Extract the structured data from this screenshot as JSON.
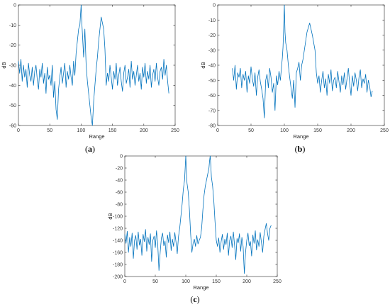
{
  "chart_data": [
    {
      "type": "line",
      "panel_label": "(a)",
      "xlabel": "Range",
      "ylabel": "dB",
      "xlim": [
        0,
        250
      ],
      "ylim": [
        -60,
        0
      ],
      "xticks": [
        0,
        50,
        100,
        150,
        200,
        250
      ],
      "yticks": [
        -60,
        -50,
        -40,
        -30,
        -20,
        -10,
        0
      ],
      "grid": false,
      "color": "#0072BD",
      "series": [
        {
          "name": "",
          "x": [
            0,
            2,
            4,
            6,
            8,
            10,
            12,
            14,
            16,
            18,
            20,
            22,
            24,
            26,
            28,
            30,
            32,
            34,
            36,
            38,
            40,
            42,
            44,
            46,
            48,
            50,
            52,
            54,
            56,
            58,
            60,
            62,
            64,
            66,
            68,
            70,
            72,
            74,
            76,
            78,
            80,
            82,
            84,
            86,
            88,
            90,
            92,
            94,
            96,
            98,
            99,
            100,
            101,
            102,
            104,
            106,
            108,
            110,
            112,
            114,
            116,
            118,
            120,
            122,
            124,
            126,
            128,
            130,
            132,
            134,
            136,
            138,
            140,
            142,
            144,
            146,
            148,
            150,
            152,
            154,
            156,
            158,
            160,
            162,
            164,
            166,
            168,
            170,
            172,
            174,
            176,
            178,
            180,
            182,
            184,
            186,
            188,
            190,
            192,
            194,
            196,
            198,
            200,
            202,
            204,
            206,
            208,
            210,
            212,
            214,
            216,
            218,
            220,
            222,
            224,
            226,
            228,
            230,
            232,
            234,
            236,
            238,
            240
          ],
          "y": [
            -28,
            -34,
            -27,
            -38,
            -30,
            -36,
            -32,
            -41,
            -29,
            -35,
            -38,
            -31,
            -40,
            -33,
            -30,
            -37,
            -42,
            -32,
            -36,
            -29,
            -39,
            -34,
            -44,
            -31,
            -37,
            -35,
            -40,
            -30,
            -46,
            -38,
            -52,
            -57,
            -42,
            -36,
            -31,
            -39,
            -34,
            -29,
            -41,
            -33,
            -37,
            -30,
            -36,
            -40,
            -28,
            -35,
            -24,
            -18,
            -12,
            -10,
            -5,
            0,
            -8,
            -14,
            -26,
            -12,
            -30,
            -38,
            -44,
            -50,
            -56,
            -60,
            -48,
            -40,
            -32,
            -26,
            -18,
            -12,
            -6,
            -9,
            -12,
            -22,
            -40,
            -34,
            -38,
            -30,
            -36,
            -42,
            -33,
            -37,
            -29,
            -40,
            -35,
            -31,
            -38,
            -43,
            -34,
            -30,
            -39,
            -36,
            -32,
            -41,
            -28,
            -37,
            -33,
            -40,
            -35,
            -30,
            -38,
            -34,
            -42,
            -31,
            -36,
            -29,
            -39,
            -33,
            -37,
            -30,
            -41,
            -35,
            -32,
            -38,
            -29,
            -36,
            -40,
            -33,
            -31,
            -37,
            -27,
            -35,
            -30,
            -38,
            -44
          ]
        }
      ]
    },
    {
      "type": "line",
      "panel_label": "(b)",
      "xlabel": "Range",
      "ylabel": "dB",
      "xlim": [
        0,
        250
      ],
      "ylim": [
        -80,
        0
      ],
      "xticks": [
        0,
        50,
        100,
        150,
        200,
        250
      ],
      "yticks": [
        -80,
        -70,
        -60,
        -50,
        -40,
        -30,
        -20,
        -10,
        0
      ],
      "grid": false,
      "color": "#0072BD",
      "series": [
        {
          "name": "",
          "x": [
            22,
            24,
            26,
            28,
            30,
            32,
            34,
            36,
            38,
            40,
            42,
            44,
            46,
            48,
            50,
            52,
            54,
            56,
            58,
            60,
            62,
            64,
            66,
            68,
            70,
            72,
            74,
            76,
            78,
            80,
            82,
            84,
            86,
            88,
            90,
            92,
            94,
            96,
            97,
            98,
            99,
            100,
            101,
            102,
            104,
            106,
            108,
            110,
            112,
            114,
            116,
            118,
            120,
            122,
            124,
            126,
            128,
            130,
            132,
            134,
            136,
            138,
            140,
            142,
            144,
            146,
            148,
            150,
            152,
            154,
            156,
            158,
            160,
            162,
            164,
            166,
            168,
            170,
            172,
            174,
            176,
            178,
            180,
            182,
            184,
            186,
            188,
            190,
            192,
            194,
            196,
            198,
            200,
            202,
            204,
            206,
            208,
            210,
            212,
            214,
            216,
            218,
            220,
            222,
            224,
            226,
            228,
            230,
            232
          ],
          "y": [
            -42,
            -50,
            -40,
            -56,
            -45,
            -48,
            -42,
            -55,
            -46,
            -50,
            -44,
            -58,
            -47,
            -52,
            -41,
            -49,
            -54,
            -45,
            -60,
            -48,
            -43,
            -51,
            -56,
            -62,
            -75,
            -50,
            -46,
            -55,
            -42,
            -48,
            -58,
            -52,
            -70,
            -47,
            -53,
            -44,
            -50,
            -40,
            -35,
            -28,
            -15,
            0,
            -18,
            -25,
            -30,
            -40,
            -48,
            -55,
            -62,
            -50,
            -68,
            -45,
            -42,
            -38,
            -50,
            -40,
            -36,
            -30,
            -24,
            -18,
            -15,
            -12,
            -16,
            -20,
            -25,
            -30,
            -45,
            -52,
            -47,
            -58,
            -50,
            -44,
            -55,
            -49,
            -60,
            -46,
            -52,
            -43,
            -57,
            -50,
            -48,
            -55,
            -44,
            -51,
            -58,
            -47,
            -53,
            -45,
            -56,
            -49,
            -42,
            -52,
            -60,
            -47,
            -54,
            -45,
            -50,
            -57,
            -48,
            -43,
            -55,
            -49,
            -52,
            -46,
            -58,
            -50,
            -54,
            -61,
            -57
          ]
        }
      ]
    },
    {
      "type": "line",
      "panel_label": "(c)",
      "xlabel": "Range",
      "ylabel": "dB",
      "xlim": [
        0,
        250
      ],
      "ylim": [
        -200,
        0
      ],
      "xticks": [
        0,
        50,
        100,
        150,
        200,
        250
      ],
      "yticks": [
        -200,
        -180,
        -160,
        -140,
        -120,
        -100,
        -80,
        -60,
        -40,
        -20,
        0
      ],
      "grid": false,
      "color": "#0072BD",
      "series": [
        {
          "name": "",
          "x": [
            0,
            2,
            4,
            6,
            8,
            10,
            12,
            14,
            16,
            18,
            20,
            22,
            24,
            26,
            28,
            30,
            32,
            34,
            36,
            38,
            40,
            42,
            44,
            46,
            48,
            50,
            52,
            54,
            56,
            58,
            60,
            62,
            64,
            66,
            68,
            70,
            72,
            74,
            76,
            78,
            80,
            82,
            84,
            86,
            88,
            90,
            92,
            94,
            96,
            98,
            99,
            100,
            101,
            102,
            104,
            106,
            108,
            110,
            112,
            114,
            116,
            118,
            120,
            122,
            124,
            126,
            128,
            130,
            132,
            134,
            136,
            138,
            139,
            140,
            141,
            142,
            144,
            146,
            148,
            150,
            152,
            154,
            156,
            158,
            160,
            162,
            164,
            166,
            168,
            170,
            172,
            174,
            176,
            178,
            180,
            182,
            184,
            186,
            188,
            190,
            192,
            194,
            196,
            198,
            200,
            202,
            204,
            206,
            208,
            210,
            212,
            214,
            216,
            218,
            220,
            222,
            224,
            226,
            228,
            230,
            232,
            234,
            236,
            238,
            240
          ],
          "y": [
            -130,
            -145,
            -125,
            -160,
            -135,
            -150,
            -128,
            -170,
            -140,
            -132,
            -155,
            -126,
            -148,
            -138,
            -165,
            -130,
            -142,
            -122,
            -158,
            -135,
            -147,
            -129,
            -175,
            -140,
            -133,
            -152,
            -124,
            -146,
            -190,
            -160,
            -136,
            -128,
            -149,
            -141,
            -168,
            -131,
            -144,
            -126,
            -157,
            -138,
            -150,
            -127,
            -143,
            -162,
            -134,
            -120,
            -100,
            -80,
            -55,
            -40,
            -20,
            0,
            -25,
            -45,
            -60,
            -90,
            -130,
            -160,
            -145,
            -138,
            -150,
            -132,
            -146,
            -140,
            -135,
            -120,
            -90,
            -65,
            -50,
            -40,
            -30,
            -20,
            -8,
            0,
            -15,
            -35,
            -50,
            -75,
            -110,
            -140,
            -150,
            -136,
            -160,
            -142,
            -130,
            -155,
            -138,
            -147,
            -128,
            -165,
            -140,
            -133,
            -152,
            -126,
            -148,
            -172,
            -137,
            -144,
            -129,
            -158,
            -135,
            -150,
            -195,
            -160,
            -140,
            -128,
            -149,
            -142,
            -166,
            -131,
            -145,
            -124,
            -156,
            -139,
            -150,
            -127,
            -143,
            -160,
            -133,
            -122,
            -112,
            -128,
            -140,
            -120,
            -115
          ]
        }
      ]
    }
  ]
}
